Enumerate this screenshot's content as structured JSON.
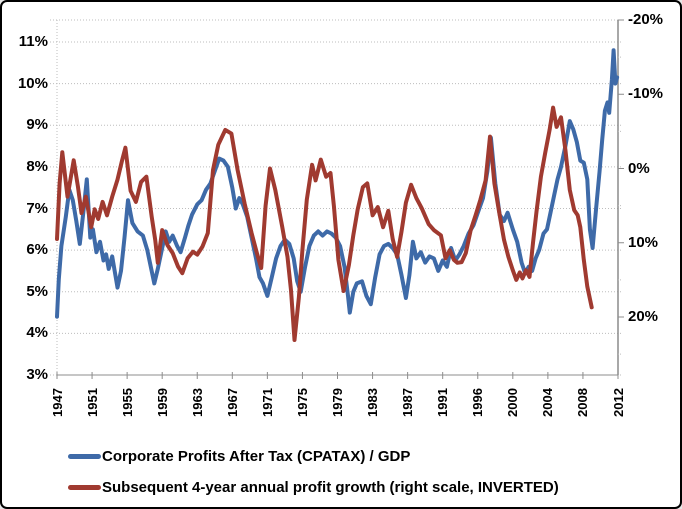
{
  "figure": {
    "background": "#ffffff",
    "border_color": "#000000",
    "grid_color": "#bdbdbd",
    "axis_color": "#8c8c8c",
    "text_color": "#000000"
  },
  "legend": {
    "series1_label": "Corporate Profits After Tax (CPATAX) / GDP",
    "series2_label": "Subsequent 4-year annual profit growth (right scale, INVERTED)"
  },
  "chart_data": {
    "type": "line",
    "title": "",
    "xlabel": "",
    "ylabel_left": "",
    "ylabel_right": "",
    "grid": true,
    "legend_position": "bottom-left",
    "x_axis": {
      "tick_labels": [
        "1947",
        "1951",
        "1955",
        "1959",
        "1963",
        "1967",
        "1971",
        "1975",
        "1979",
        "1983",
        "1987",
        "1991",
        "1996",
        "2000",
        "2004",
        "2008",
        "2012"
      ],
      "tick_years": [
        1947,
        1951,
        1955,
        1959,
        1963,
        1967,
        1971,
        1975,
        1979,
        1983,
        1987,
        1991,
        1996,
        2000,
        2004,
        2008,
        2012
      ]
    },
    "left_axis": {
      "tick_labels": [
        "3%",
        "4%",
        "5%",
        "6%",
        "7%",
        "8%",
        "9%",
        "10%",
        "11%"
      ],
      "tick_values": [
        3,
        4,
        5,
        6,
        7,
        8,
        9,
        10,
        11
      ],
      "min": 3,
      "max": 11.55
    },
    "right_axis": {
      "inverted": true,
      "tick_labels": [
        "-20%",
        "-10%",
        "0%",
        "10%",
        "20%"
      ],
      "tick_values": [
        -20,
        -10,
        0,
        10,
        20
      ],
      "minor_step": 5
    },
    "series": [
      {
        "name": "Corporate Profits After Tax (CPATAX) / GDP",
        "axis": "left",
        "color": "#3e6aa8",
        "points": [
          [
            1947.0,
            4.4
          ],
          [
            1947.2,
            5.3
          ],
          [
            1947.5,
            6.1
          ],
          [
            1948.0,
            6.8
          ],
          [
            1948.4,
            7.45
          ],
          [
            1948.8,
            7.2
          ],
          [
            1949.2,
            6.7
          ],
          [
            1949.6,
            6.15
          ],
          [
            1950.0,
            6.9
          ],
          [
            1950.4,
            7.7
          ],
          [
            1950.8,
            6.3
          ],
          [
            1951.1,
            6.5
          ],
          [
            1951.5,
            5.95
          ],
          [
            1951.9,
            6.2
          ],
          [
            1952.3,
            5.75
          ],
          [
            1952.6,
            5.9
          ],
          [
            1952.9,
            5.55
          ],
          [
            1953.3,
            5.85
          ],
          [
            1953.9,
            5.1
          ],
          [
            1954.3,
            5.5
          ],
          [
            1954.7,
            6.3
          ],
          [
            1955.1,
            7.2
          ],
          [
            1955.6,
            6.65
          ],
          [
            1956.2,
            6.45
          ],
          [
            1956.8,
            6.35
          ],
          [
            1957.3,
            6.0
          ],
          [
            1957.7,
            5.6
          ],
          [
            1958.1,
            5.2
          ],
          [
            1958.5,
            5.55
          ],
          [
            1959.0,
            6.05
          ],
          [
            1959.4,
            6.45
          ],
          [
            1959.8,
            6.2
          ],
          [
            1960.2,
            6.35
          ],
          [
            1960.7,
            6.1
          ],
          [
            1961.1,
            5.95
          ],
          [
            1961.6,
            6.3
          ],
          [
            1962.0,
            6.6
          ],
          [
            1962.4,
            6.85
          ],
          [
            1963.0,
            7.1
          ],
          [
            1963.5,
            7.2
          ],
          [
            1964.0,
            7.45
          ],
          [
            1964.5,
            7.6
          ],
          [
            1965.0,
            7.9
          ],
          [
            1965.5,
            8.2
          ],
          [
            1966.0,
            8.15
          ],
          [
            1966.5,
            8.0
          ],
          [
            1967.0,
            7.5
          ],
          [
            1967.4,
            7.0
          ],
          [
            1967.8,
            7.25
          ],
          [
            1968.2,
            7.1
          ],
          [
            1968.7,
            6.8
          ],
          [
            1969.2,
            6.3
          ],
          [
            1969.7,
            5.8
          ],
          [
            1970.1,
            5.35
          ],
          [
            1970.5,
            5.2
          ],
          [
            1971.0,
            4.9
          ],
          [
            1971.5,
            5.35
          ],
          [
            1972.0,
            5.8
          ],
          [
            1972.5,
            6.1
          ],
          [
            1973.0,
            6.25
          ],
          [
            1973.5,
            6.15
          ],
          [
            1974.0,
            5.8
          ],
          [
            1974.4,
            5.25
          ],
          [
            1974.8,
            5.0
          ],
          [
            1975.3,
            5.6
          ],
          [
            1975.8,
            6.1
          ],
          [
            1976.3,
            6.35
          ],
          [
            1976.8,
            6.45
          ],
          [
            1977.3,
            6.35
          ],
          [
            1977.8,
            6.45
          ],
          [
            1978.3,
            6.4
          ],
          [
            1978.8,
            6.3
          ],
          [
            1979.3,
            6.1
          ],
          [
            1979.8,
            5.6
          ],
          [
            1980.2,
            4.9
          ],
          [
            1980.4,
            4.5
          ],
          [
            1980.8,
            5.0
          ],
          [
            1981.2,
            5.2
          ],
          [
            1981.8,
            5.25
          ],
          [
            1982.3,
            4.9
          ],
          [
            1982.8,
            4.7
          ],
          [
            1983.3,
            5.35
          ],
          [
            1983.8,
            5.9
          ],
          [
            1984.3,
            6.1
          ],
          [
            1984.8,
            6.15
          ],
          [
            1985.3,
            6.05
          ],
          [
            1985.8,
            5.9
          ],
          [
            1986.3,
            5.4
          ],
          [
            1986.8,
            4.85
          ],
          [
            1987.2,
            5.4
          ],
          [
            1987.6,
            6.2
          ],
          [
            1988.0,
            5.8
          ],
          [
            1988.5,
            5.95
          ],
          [
            1989.0,
            5.7
          ],
          [
            1989.5,
            5.85
          ],
          [
            1990.0,
            5.8
          ],
          [
            1990.5,
            5.5
          ],
          [
            1991.0,
            5.75
          ],
          [
            1991.6,
            5.6
          ],
          [
            1992.2,
            6.05
          ],
          [
            1992.8,
            5.75
          ],
          [
            1993.4,
            5.9
          ],
          [
            1994.0,
            6.1
          ],
          [
            1994.7,
            6.4
          ],
          [
            1995.4,
            6.6
          ],
          [
            1996.0,
            6.9
          ],
          [
            1996.6,
            7.25
          ],
          [
            1997.1,
            7.9
          ],
          [
            1997.5,
            8.7
          ],
          [
            1998.0,
            7.6
          ],
          [
            1998.5,
            6.85
          ],
          [
            1999.0,
            6.7
          ],
          [
            1999.4,
            6.9
          ],
          [
            2000.0,
            6.5
          ],
          [
            2000.5,
            6.2
          ],
          [
            2001.0,
            5.7
          ],
          [
            2001.4,
            5.45
          ],
          [
            2001.8,
            5.6
          ],
          [
            2002.2,
            5.5
          ],
          [
            2002.6,
            5.8
          ],
          [
            2003.0,
            6.0
          ],
          [
            2003.5,
            6.4
          ],
          [
            2003.9,
            6.5
          ],
          [
            2004.3,
            6.9
          ],
          [
            2004.7,
            7.3
          ],
          [
            2005.1,
            7.7
          ],
          [
            2005.5,
            8.0
          ],
          [
            2006.0,
            8.5
          ],
          [
            2006.5,
            9.1
          ],
          [
            2006.9,
            8.9
          ],
          [
            2007.3,
            8.6
          ],
          [
            2007.7,
            8.15
          ],
          [
            2008.1,
            8.1
          ],
          [
            2008.5,
            7.7
          ],
          [
            2008.8,
            6.5
          ],
          [
            2009.1,
            6.05
          ],
          [
            2009.5,
            7.0
          ],
          [
            2009.9,
            7.9
          ],
          [
            2010.2,
            8.65
          ],
          [
            2010.5,
            9.35
          ],
          [
            2010.8,
            9.55
          ],
          [
            2011.0,
            9.3
          ],
          [
            2011.3,
            10.1
          ],
          [
            2011.5,
            10.8
          ],
          [
            2011.7,
            10.0
          ],
          [
            2011.9,
            10.15
          ]
        ]
      },
      {
        "name": "Subsequent 4-year annual profit growth (right scale, INVERTED)",
        "axis": "right",
        "color": "#a03a30",
        "points": [
          [
            1947.0,
            9.5
          ],
          [
            1947.3,
            2.0
          ],
          [
            1947.6,
            -2.2
          ],
          [
            1948.2,
            3.8
          ],
          [
            1948.9,
            -1.1
          ],
          [
            1949.4,
            2.5
          ],
          [
            1949.8,
            6.0
          ],
          [
            1950.3,
            3.8
          ],
          [
            1950.9,
            7.9
          ],
          [
            1951.3,
            5.5
          ],
          [
            1951.7,
            6.8
          ],
          [
            1952.2,
            4.5
          ],
          [
            1952.7,
            6.3
          ],
          [
            1953.3,
            3.8
          ],
          [
            1953.9,
            1.5
          ],
          [
            1954.4,
            -1.0
          ],
          [
            1954.8,
            -2.8
          ],
          [
            1955.4,
            3.0
          ],
          [
            1956.0,
            4.5
          ],
          [
            1956.6,
            1.8
          ],
          [
            1957.2,
            1.1
          ],
          [
            1957.8,
            6.5
          ],
          [
            1958.2,
            9.6
          ],
          [
            1958.5,
            12.7
          ],
          [
            1959.0,
            8.3
          ],
          [
            1959.6,
            10.3
          ],
          [
            1960.2,
            11.4
          ],
          [
            1960.8,
            13.2
          ],
          [
            1961.3,
            14.1
          ],
          [
            1961.9,
            12.1
          ],
          [
            1962.5,
            11.2
          ],
          [
            1963.0,
            11.6
          ],
          [
            1963.6,
            10.5
          ],
          [
            1964.2,
            8.7
          ],
          [
            1964.8,
            0.2
          ],
          [
            1965.4,
            -3.2
          ],
          [
            1966.2,
            -5.2
          ],
          [
            1966.9,
            -4.7
          ],
          [
            1967.6,
            0.2
          ],
          [
            1968.4,
            4.7
          ],
          [
            1969.2,
            8.7
          ],
          [
            1969.8,
            11.4
          ],
          [
            1970.3,
            13.4
          ],
          [
            1970.8,
            5.0
          ],
          [
            1971.3,
            0.0
          ],
          [
            1971.9,
            2.9
          ],
          [
            1972.7,
            7.9
          ],
          [
            1973.3,
            11.9
          ],
          [
            1973.7,
            16.4
          ],
          [
            1974.1,
            23.1
          ],
          [
            1974.6,
            17.3
          ],
          [
            1975.0,
            11.0
          ],
          [
            1975.5,
            4.2
          ],
          [
            1976.1,
            -0.5
          ],
          [
            1976.5,
            1.6
          ],
          [
            1977.1,
            -1.2
          ],
          [
            1977.7,
            1.1
          ],
          [
            1978.2,
            0.6
          ],
          [
            1978.6,
            5.2
          ],
          [
            1979.1,
            12.3
          ],
          [
            1979.7,
            16.5
          ],
          [
            1980.3,
            13.0
          ],
          [
            1980.8,
            9.0
          ],
          [
            1981.3,
            5.5
          ],
          [
            1981.9,
            2.5
          ],
          [
            1982.4,
            2.0
          ],
          [
            1983.0,
            6.3
          ],
          [
            1983.6,
            5.2
          ],
          [
            1984.2,
            7.9
          ],
          [
            1984.8,
            5.7
          ],
          [
            1985.3,
            9.5
          ],
          [
            1985.8,
            11.9
          ],
          [
            1986.3,
            8.5
          ],
          [
            1986.8,
            4.6
          ],
          [
            1987.4,
            2.2
          ],
          [
            1988.0,
            4.0
          ],
          [
            1988.6,
            5.3
          ],
          [
            1989.4,
            7.5
          ],
          [
            1990.0,
            8.3
          ],
          [
            1990.8,
            9.0
          ],
          [
            1991.4,
            12.1
          ],
          [
            1992.0,
            11.0
          ],
          [
            1992.6,
            12.3
          ],
          [
            1993.1,
            12.7
          ],
          [
            1993.7,
            12.6
          ],
          [
            1994.3,
            11.4
          ],
          [
            1995.0,
            8.3
          ],
          [
            1995.7,
            6.3
          ],
          [
            1996.3,
            4.2
          ],
          [
            1996.9,
            1.6
          ],
          [
            1997.4,
            -4.3
          ],
          [
            1997.9,
            2.0
          ],
          [
            1998.4,
            5.6
          ],
          [
            1999.0,
            9.6
          ],
          [
            1999.5,
            11.9
          ],
          [
            2000.0,
            13.7
          ],
          [
            2000.4,
            15.0
          ],
          [
            2000.8,
            14.0
          ],
          [
            2001.1,
            14.8
          ],
          [
            2001.5,
            13.7
          ],
          [
            2001.9,
            14.6
          ],
          [
            2002.3,
            10.0
          ],
          [
            2002.7,
            5.8
          ],
          [
            2003.2,
            1.1
          ],
          [
            2003.7,
            -2.1
          ],
          [
            2004.2,
            -5.2
          ],
          [
            2004.6,
            -8.2
          ],
          [
            2005.0,
            -5.6
          ],
          [
            2005.5,
            -6.9
          ],
          [
            2006.0,
            -2.5
          ],
          [
            2006.5,
            2.9
          ],
          [
            2007.0,
            5.6
          ],
          [
            2007.4,
            6.3
          ],
          [
            2007.7,
            7.9
          ],
          [
            2008.1,
            12.3
          ],
          [
            2008.5,
            15.9
          ],
          [
            2009.0,
            18.7
          ]
        ]
      }
    ]
  }
}
